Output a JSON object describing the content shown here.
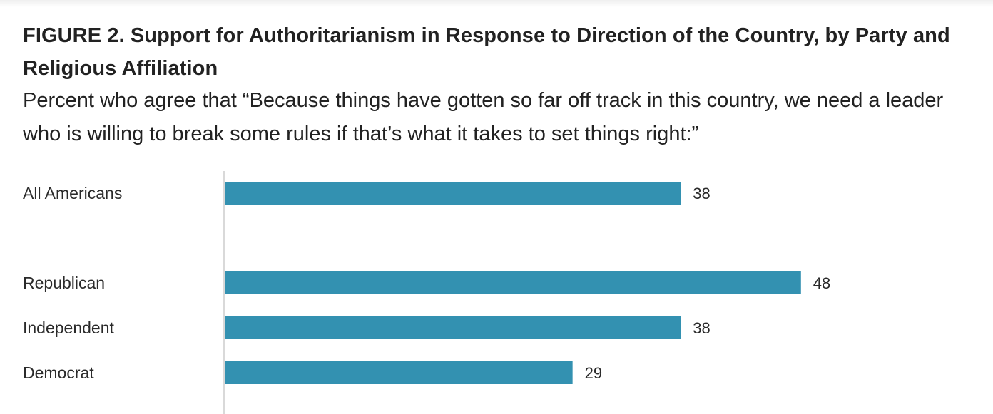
{
  "figure": {
    "title": "FIGURE 2.  Support for Authoritarianism in Response to Direction of the Country, by Party and Religious Affiliation",
    "subtitle": "Percent who agree that “Because things have gotten so far off track in this country, we need a leader who is willing to break some rules if that’s what it takes to set things right:”"
  },
  "chart_data": {
    "type": "bar",
    "orientation": "horizontal",
    "categories": [
      "All Americans",
      "Republican",
      "Independent",
      "Democrat"
    ],
    "values": [
      38,
      48,
      38,
      29
    ],
    "data_labels": [
      "38",
      "48",
      "38",
      "29"
    ],
    "xlabel": "",
    "ylabel": "",
    "xlim": [
      0,
      60
    ],
    "grid": false,
    "bar_color": "#3391b1",
    "axis_color": "#d9d9d9"
  }
}
